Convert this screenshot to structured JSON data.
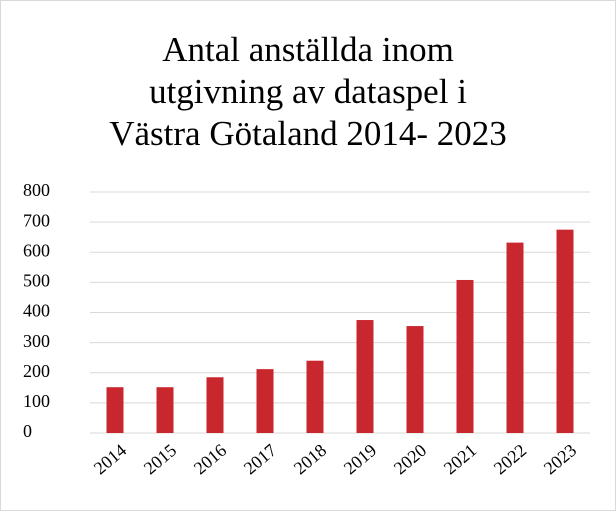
{
  "chart_data": {
    "type": "bar",
    "title": "Antal anställda inom\nutgivning av dataspel i\nVästra Götaland 2014- 2023",
    "categories": [
      "2014",
      "2015",
      "2016",
      "2017",
      "2018",
      "2019",
      "2020",
      "2021",
      "2022",
      "2023"
    ],
    "values": [
      152,
      152,
      185,
      212,
      240,
      375,
      355,
      508,
      632,
      675
    ],
    "color": "#c8282d",
    "ylim": [
      0,
      800
    ],
    "yticks": [
      0,
      100,
      200,
      300,
      400,
      500,
      600,
      700,
      800
    ],
    "grid": true
  }
}
